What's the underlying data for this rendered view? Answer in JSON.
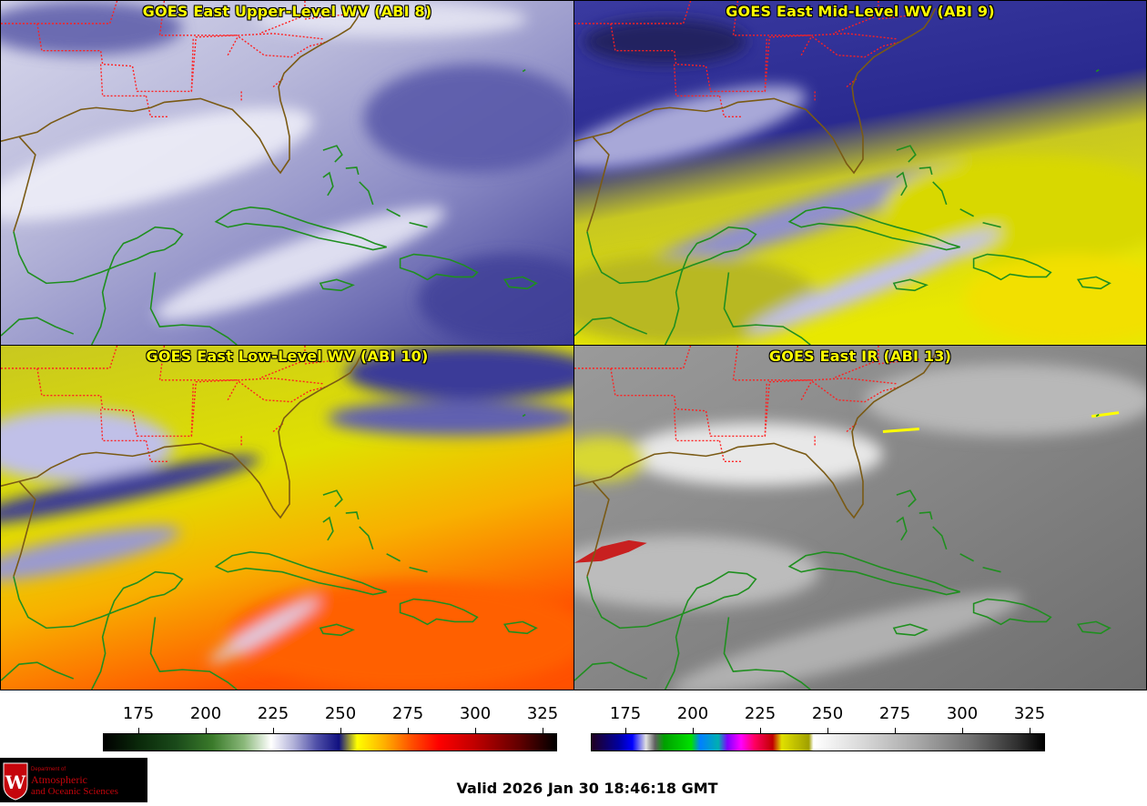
{
  "panels": [
    {
      "title": "GOES East Upper-Level WV (ABI 8)"
    },
    {
      "title": "GOES East Mid-Level WV (ABI 9)"
    },
    {
      "title": "GOES East Low-Level WV (ABI 10)"
    },
    {
      "title": "GOES East IR (ABI 13)"
    }
  ],
  "wv_colorbar": {
    "ticks": [
      "175",
      "200",
      "225",
      "250",
      "275",
      "300",
      "325"
    ]
  },
  "ir_colorbar": {
    "ticks": [
      "175",
      "200",
      "225",
      "250",
      "275",
      "300",
      "325"
    ]
  },
  "logo": {
    "line1": "Department of",
    "line2": "Atmospheric",
    "line3": "and Oceanic Sciences",
    "mark": "W"
  },
  "valid_time": "Valid 2026 Jan 30 18:46:18 GMT",
  "colors": {
    "title": "#ffff00",
    "state_lines": "#ff2020",
    "coast_us": "#7a5a14",
    "coast_islands": "#1f8f1f"
  }
}
